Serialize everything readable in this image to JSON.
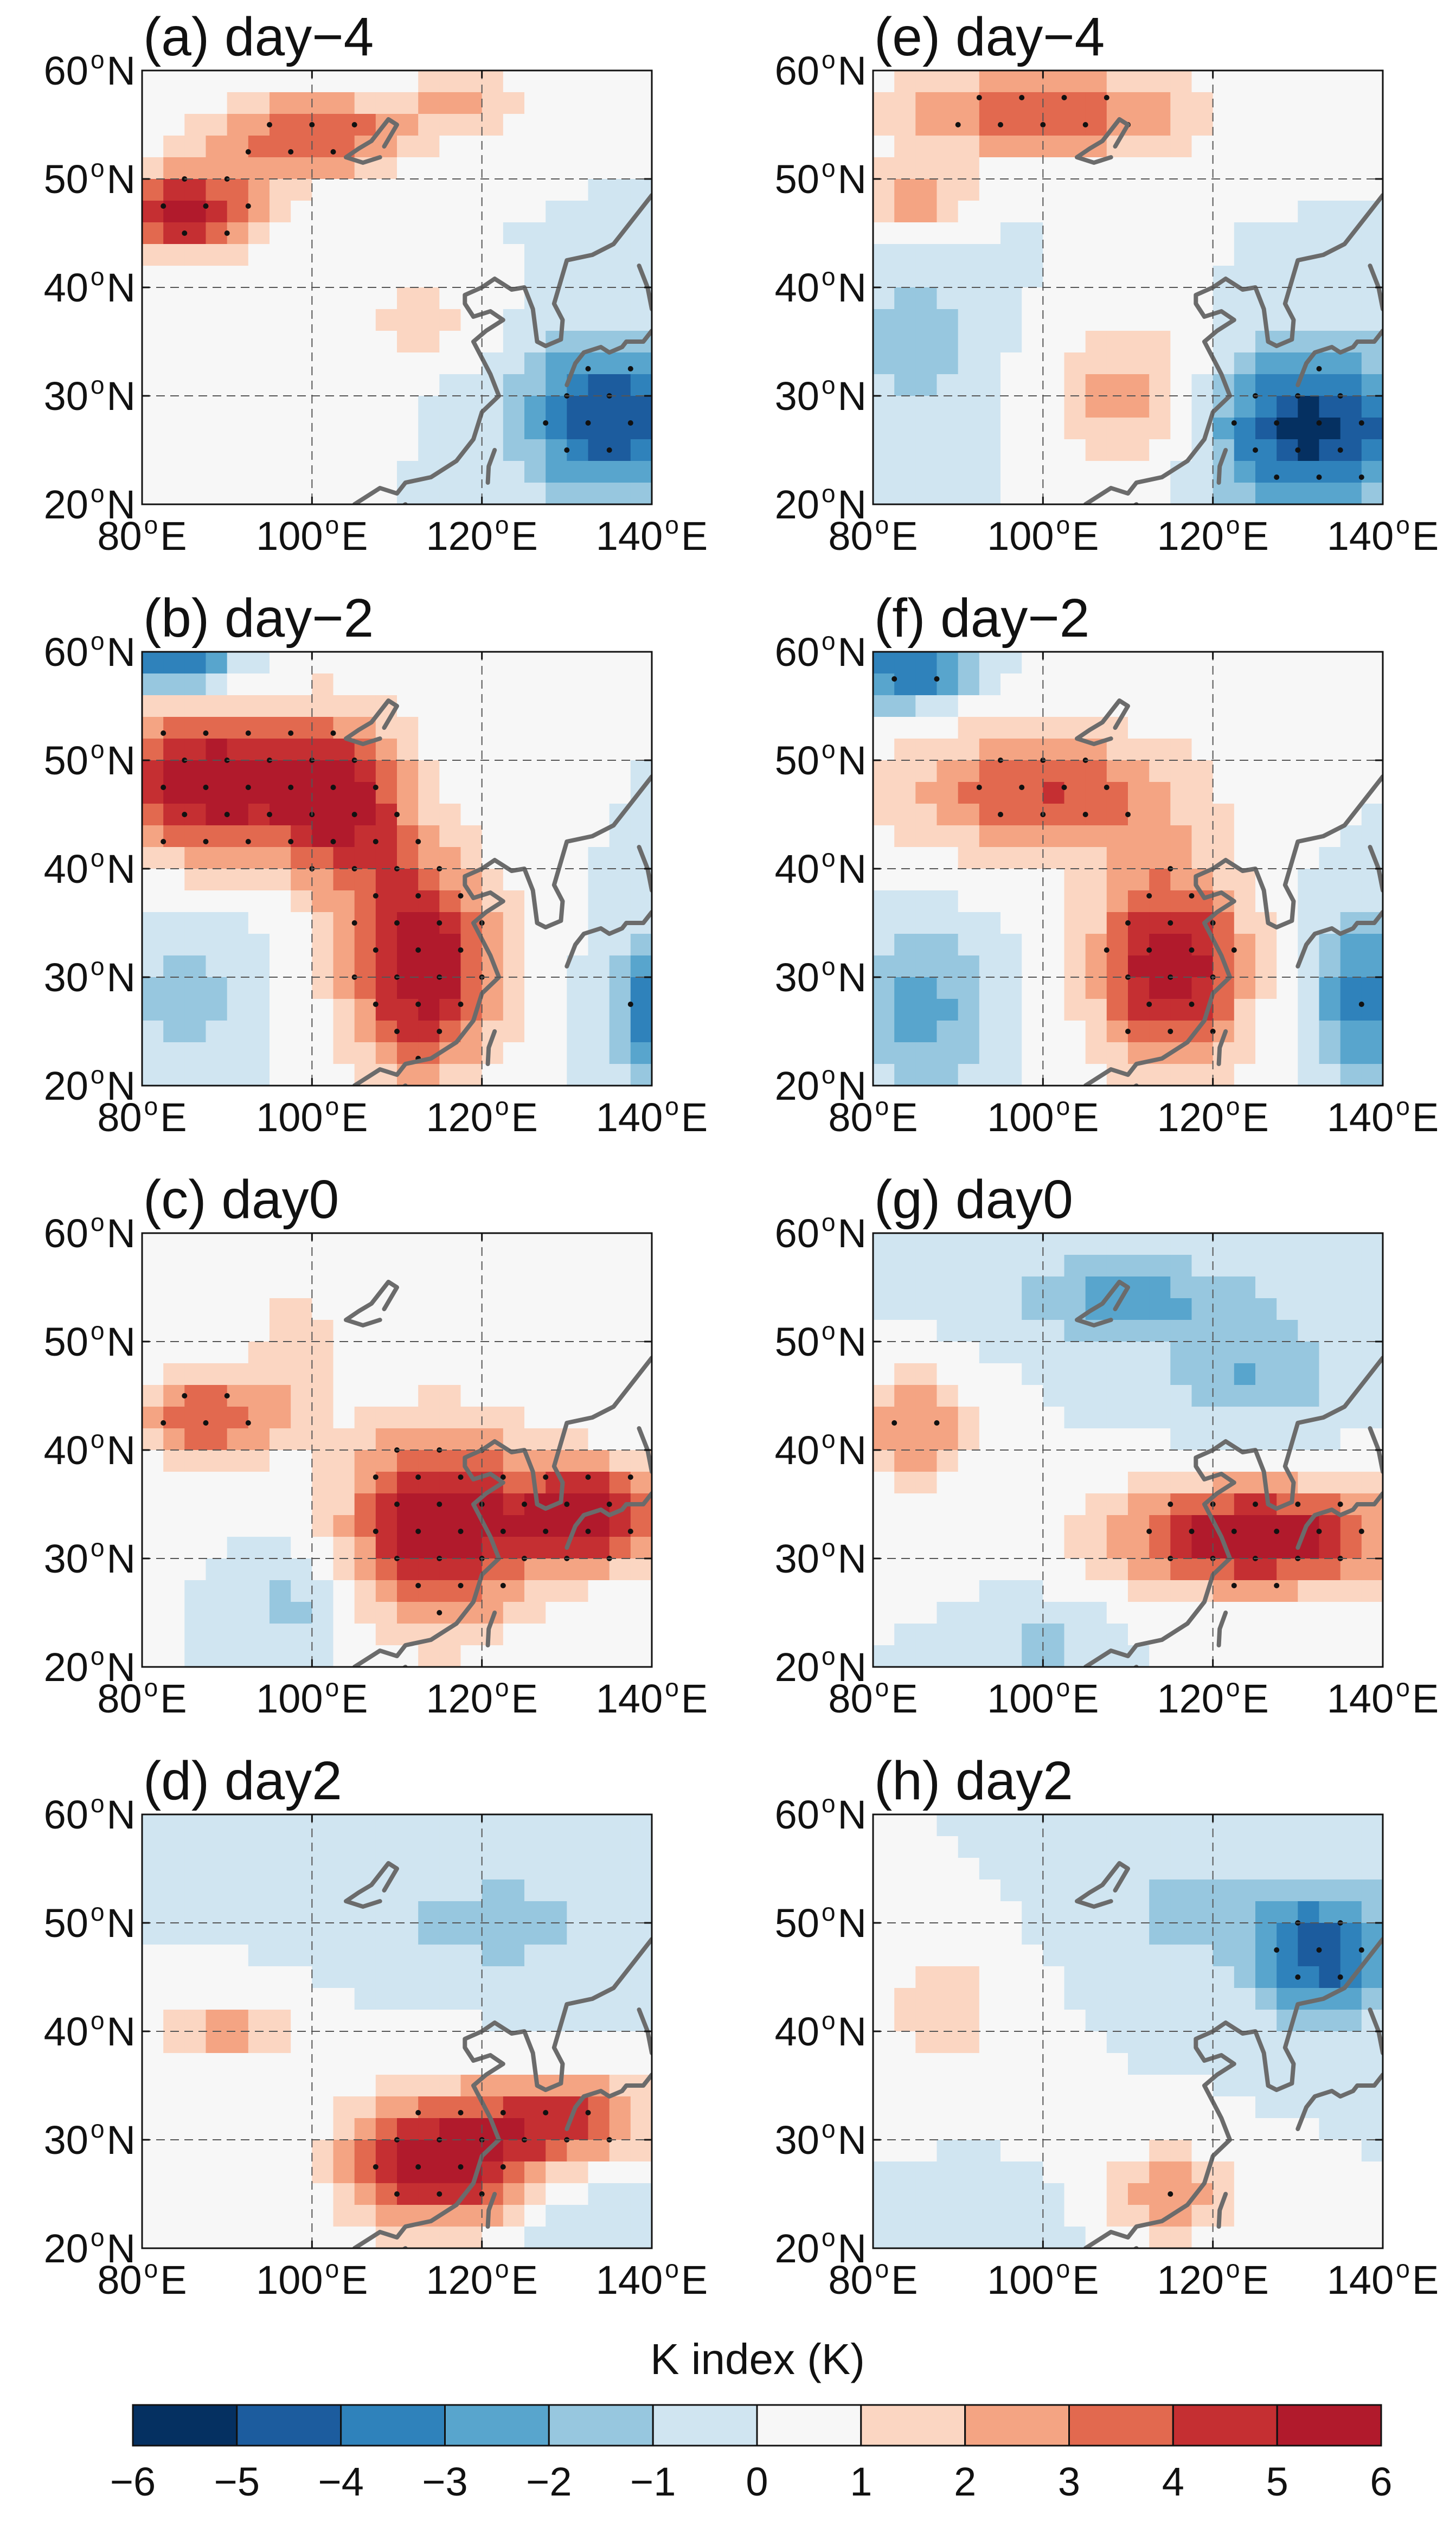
{
  "chart_data": {
    "type": "heatmap",
    "variable_label": "K index (K)",
    "colorbar": {
      "label": "K index (K)",
      "levels": [
        -6,
        -5,
        -4,
        -3,
        -2,
        -1,
        0,
        1,
        2,
        3,
        4,
        5,
        6
      ],
      "tick_labels": [
        "−6",
        "−5",
        "−4",
        "−3",
        "−2",
        "−1",
        "0",
        "1",
        "2",
        "3",
        "4",
        "5",
        "6"
      ],
      "colors": [
        "#053061",
        "#1c5c9e",
        "#2f82bb",
        "#58a5cd",
        "#97c7df",
        "#d0e5f1",
        "#f7f7f7",
        "#fbd6c2",
        "#f4a483",
        "#e2694f",
        "#c52f32",
        "#b11a2c"
      ]
    },
    "x_axis": {
      "range": [
        80,
        140
      ],
      "ticks": [
        80,
        100,
        120,
        140
      ],
      "tick_labels": [
        {
          "num": "80",
          "deg": "o",
          "dir": "E"
        },
        {
          "num": "100",
          "deg": "o",
          "dir": "E"
        },
        {
          "num": "120",
          "deg": "o",
          "dir": "E"
        },
        {
          "num": "140",
          "deg": "o",
          "dir": "E"
        }
      ]
    },
    "y_axis": {
      "range": [
        20,
        60
      ],
      "ticks": [
        20,
        30,
        40,
        50,
        60
      ],
      "tick_labels": [
        {
          "num": "20",
          "deg": "o",
          "dir": "N"
        },
        {
          "num": "30",
          "deg": "o",
          "dir": "N"
        },
        {
          "num": "40",
          "deg": "o",
          "dir": "N"
        },
        {
          "num": "50",
          "deg": "o",
          "dir": "N"
        },
        {
          "num": "60",
          "deg": "o",
          "dir": "N"
        }
      ]
    },
    "panels": [
      {
        "id": "a",
        "title": "(a) day−4",
        "anomalies": [
          {
            "lon": 85,
            "lat": 47,
            "amp": 5.5,
            "rlon": 9,
            "rlat": 4
          },
          {
            "lon": 100,
            "lat": 54,
            "amp": 4,
            "rlon": 12,
            "rlat": 4
          },
          {
            "lon": 118,
            "lat": 57,
            "amp": 2,
            "rlon": 8,
            "rlat": 3
          },
          {
            "lon": 112,
            "lat": 37,
            "amp": 1.5,
            "rlon": 8,
            "rlat": 4
          },
          {
            "lon": 95,
            "lat": 26,
            "amp": 1,
            "rlon": 8,
            "rlat": 4
          },
          {
            "lon": 135,
            "lat": 28,
            "amp": -5,
            "rlon": 10,
            "rlat": 7
          }
        ]
      },
      {
        "id": "b",
        "title": "(b) day−2",
        "anomalies": [
          {
            "lon": 88,
            "lat": 48,
            "amp": 6,
            "rlon": 13,
            "rlat": 7
          },
          {
            "lon": 104,
            "lat": 46,
            "amp": 4.5,
            "rlon": 8,
            "rlat": 8
          },
          {
            "lon": 113,
            "lat": 31,
            "amp": 6,
            "rlon": 9,
            "rlat": 10
          },
          {
            "lon": 84,
            "lat": 59,
            "amp": -4,
            "rlon": 7,
            "rlat": 3
          },
          {
            "lon": 140,
            "lat": 27,
            "amp": -3.5,
            "rlon": 5,
            "rlat": 7
          },
          {
            "lon": 85,
            "lat": 28,
            "amp": -1.5,
            "rlon": 7,
            "rlat": 7
          }
        ]
      },
      {
        "id": "c",
        "title": "(c) day0",
        "anomalies": [
          {
            "lon": 88,
            "lat": 43,
            "amp": 4,
            "rlon": 10,
            "rlat": 4
          },
          {
            "lon": 115,
            "lat": 33,
            "amp": 6,
            "rlon": 11,
            "rlat": 9
          },
          {
            "lon": 133,
            "lat": 34,
            "amp": 5.5,
            "rlon": 9,
            "rlat": 5
          },
          {
            "lon": 98,
            "lat": 50,
            "amp": 2,
            "rlon": 5,
            "rlat": 4
          },
          {
            "lon": 98,
            "lat": 26,
            "amp": -1.5,
            "rlon": 5,
            "rlat": 5
          }
        ]
      },
      {
        "id": "d",
        "title": "(d) day2",
        "anomalies": [
          {
            "lon": 115,
            "lat": 28,
            "amp": 6,
            "rlon": 11,
            "rlat": 6
          },
          {
            "lon": 130,
            "lat": 32,
            "amp": 4,
            "rlon": 10,
            "rlat": 4
          },
          {
            "lon": 90,
            "lat": 40,
            "amp": 2.5,
            "rlon": 9,
            "rlat": 3
          },
          {
            "lon": 122,
            "lat": 50,
            "amp": -1.5,
            "rlon": 14,
            "rlat": 5
          },
          {
            "lon": 132,
            "lat": 22,
            "amp": -1,
            "rlon": 8,
            "rlat": 4
          }
        ]
      },
      {
        "id": "e",
        "title": "(e) day−4",
        "anomalies": [
          {
            "lon": 100,
            "lat": 56,
            "amp": 4,
            "rlon": 18,
            "rlat": 4
          },
          {
            "lon": 85,
            "lat": 48,
            "amp": 3,
            "rlon": 6,
            "rlat": 3
          },
          {
            "lon": 110,
            "lat": 30,
            "amp": 2.5,
            "rlon": 9,
            "rlat": 7
          },
          {
            "lon": 132,
            "lat": 27,
            "amp": -5.5,
            "rlon": 12,
            "rlat": 7
          },
          {
            "lon": 85,
            "lat": 35,
            "amp": -1.5,
            "rlon": 8,
            "rlat": 8
          }
        ]
      },
      {
        "id": "f",
        "title": "(f) day−2",
        "anomalies": [
          {
            "lon": 100,
            "lat": 47,
            "amp": 4,
            "rlon": 17,
            "rlat": 6
          },
          {
            "lon": 115,
            "lat": 31,
            "amp": 6,
            "rlon": 9,
            "rlat": 9
          },
          {
            "lon": 84,
            "lat": 58,
            "amp": -4,
            "rlon": 7,
            "rlat": 3
          },
          {
            "lon": 138,
            "lat": 28,
            "amp": -3.5,
            "rlon": 6,
            "rlat": 8
          },
          {
            "lon": 86,
            "lat": 27,
            "amp": -2.5,
            "rlon": 7,
            "rlat": 7
          }
        ]
      },
      {
        "id": "g",
        "title": "(g) day0",
        "anomalies": [
          {
            "lon": 125,
            "lat": 32,
            "amp": 6,
            "rlon": 17,
            "rlat": 5
          },
          {
            "lon": 85,
            "lat": 42,
            "amp": 3,
            "rlon": 7,
            "rlat": 5
          },
          {
            "lon": 110,
            "lat": 54,
            "amp": -2.5,
            "rlon": 14,
            "rlat": 4
          },
          {
            "lon": 125,
            "lat": 47,
            "amp": -2,
            "rlon": 10,
            "rlat": 5
          },
          {
            "lon": 100,
            "lat": 22,
            "amp": -1.5,
            "rlon": 6,
            "rlat": 4
          }
        ]
      },
      {
        "id": "h",
        "title": "(h) day2",
        "anomalies": [
          {
            "lon": 133,
            "lat": 47,
            "amp": -4.5,
            "rlon": 8,
            "rlat": 6
          },
          {
            "lon": 118,
            "lat": 51,
            "amp": -1.5,
            "rlon": 10,
            "rlat": 5
          },
          {
            "lon": 115,
            "lat": 25,
            "amp": 3,
            "rlon": 8,
            "rlat": 4
          },
          {
            "lon": 88,
            "lat": 42,
            "amp": 2,
            "rlon": 7,
            "rlat": 5
          },
          {
            "lon": 95,
            "lat": 22,
            "amp": -1,
            "rlon": 8,
            "rlat": 3
          }
        ]
      }
    ]
  }
}
